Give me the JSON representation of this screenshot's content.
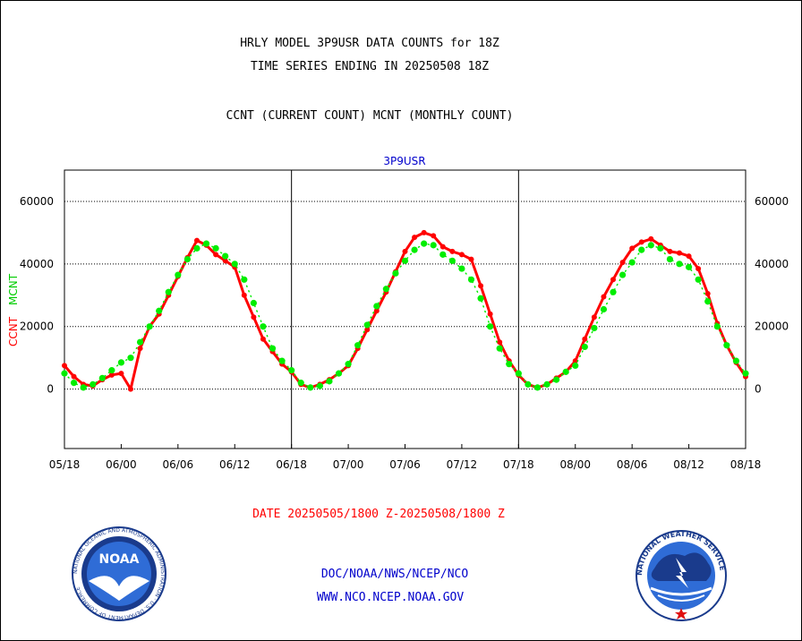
{
  "header": {
    "line1": "HRLY MODEL 3P9USR DATA COUNTS for 18Z",
    "line2": "TIME SERIES ENDING IN 20250508 18Z",
    "line3": "CCNT (CURRENT COUNT) MCNT (MONTHLY COUNT)"
  },
  "footer": {
    "date_range": "DATE 20250505/1800 Z-20250508/1800 Z",
    "org": "DOC/NOAA/NWS/NCEP/NCO",
    "url": "WWW.NCO.NCEP.NOAA.GOV"
  },
  "logos": {
    "left": {
      "text": "NOAA",
      "ring_text": "NATIONAL OCEANIC AND ATMOSPHERIC ADMINISTRATION · U.S. DEPARTMENT OF COMMERCE"
    },
    "right": {
      "ring_text": "NATIONAL WEATHER SERVICE"
    }
  },
  "chart_data": {
    "type": "line",
    "title": "3P9USR",
    "ylabel_ccnt": "CCNT",
    "ylabel_mcnt": "MCNT",
    "colors": {
      "ccnt": "#ff0000",
      "mcnt": "#00ee00",
      "title": "#0000cc",
      "axis": "#000000"
    },
    "ylim": [
      -19000,
      70000
    ],
    "yticks": [
      0,
      20000,
      40000,
      60000
    ],
    "ytick_labels": [
      "0",
      "20000",
      "40000",
      "60000"
    ],
    "xlim": [
      0,
      72
    ],
    "xticks": [
      0,
      6,
      12,
      18,
      24,
      30,
      36,
      42,
      48,
      54,
      60,
      66,
      72
    ],
    "xtick_labels": [
      "05/18",
      "06/00",
      "06/06",
      "06/12",
      "06/18",
      "07/00",
      "07/06",
      "07/12",
      "07/18",
      "08/00",
      "08/06",
      "08/12",
      "08/18"
    ],
    "grid": true,
    "day_separators": [
      24,
      48
    ],
    "series": [
      {
        "name": "CCNT",
        "color": "#ff0000",
        "values": [
          7500,
          4000,
          1500,
          1000,
          3000,
          4500,
          5000,
          0,
          13000,
          20000,
          24000,
          30000,
          36000,
          42000,
          47500,
          46000,
          43000,
          41000,
          39000,
          30000,
          23000,
          16000,
          12000,
          8000,
          5500,
          1500,
          500,
          1500,
          3000,
          5000,
          7500,
          13000,
          19000,
          25000,
          31000,
          37500,
          44000,
          48500,
          50000,
          49000,
          45500,
          44000,
          43000,
          41500,
          33000,
          24000,
          15000,
          9000,
          4500,
          1500,
          500,
          1500,
          3500,
          5500,
          9000,
          16000,
          23000,
          29500,
          35000,
          40500,
          45000,
          47000,
          48000,
          46000,
          44000,
          43500,
          42500,
          38500,
          30500,
          21000,
          14000,
          8500,
          4000
        ]
      },
      {
        "name": "MCNT",
        "color": "#00ee00",
        "values": [
          5000,
          2000,
          500,
          1500,
          3500,
          6000,
          8500,
          10000,
          15000,
          20000,
          25000,
          31000,
          36500,
          41500,
          45000,
          46500,
          45000,
          42500,
          40000,
          35000,
          27500,
          20000,
          13000,
          9000,
          6000,
          2000,
          500,
          1000,
          2500,
          5000,
          8000,
          14000,
          20500,
          26500,
          32000,
          37000,
          41000,
          44500,
          46500,
          46000,
          43000,
          41000,
          38500,
          35000,
          29000,
          20000,
          13000,
          8000,
          5000,
          1500,
          500,
          1500,
          3000,
          5500,
          7500,
          13500,
          19500,
          25500,
          31000,
          36500,
          40500,
          44500,
          46000,
          45000,
          41500,
          40000,
          39000,
          35000,
          28000,
          20000,
          14000,
          9000,
          5000
        ]
      }
    ]
  }
}
